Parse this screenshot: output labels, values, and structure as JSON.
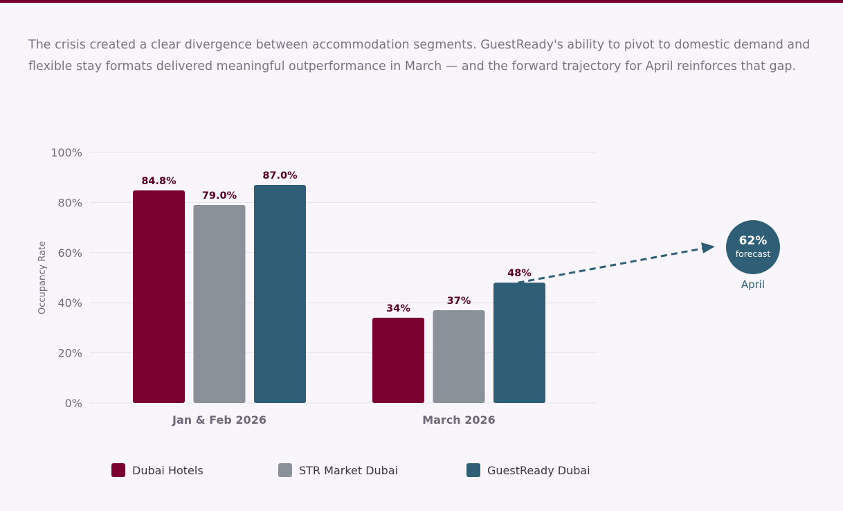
{
  "intro_text": "The crisis created a clear divergence between accommodation segments. GuestReady's ability to pivot to domestic demand and flexible stay formats delivered meaningful outperformance in March — and the forward trajectory for April reinforces that gap.",
  "colors": {
    "accent": "#7a0030",
    "dubai_hotels": "#7a0030",
    "str_market": "#8b9198",
    "guestready": "#2f5f76",
    "label": "#5a0025"
  },
  "chart_data": {
    "type": "bar",
    "categories": [
      "Jan & Feb 2026",
      "March 2026"
    ],
    "series": [
      {
        "name": "Dubai Hotels",
        "values": [
          84.8,
          34
        ],
        "labels": [
          "84.8%",
          "34%"
        ]
      },
      {
        "name": "STR Market Dubai",
        "values": [
          79.0,
          37
        ],
        "labels": [
          "79.0%",
          "37%"
        ]
      },
      {
        "name": "GuestReady Dubai",
        "values": [
          87.0,
          48
        ],
        "labels": [
          "87.0%",
          "48%"
        ]
      }
    ],
    "ylabel": "Occupancy Rate",
    "ylim": [
      0,
      100
    ],
    "yticks": [
      "0%",
      "20%",
      "40%",
      "60%",
      "80%",
      "100%"
    ],
    "grid": true,
    "legend": "bottom",
    "forecast": {
      "value": "62%",
      "sublabel": "forecast",
      "period": "April"
    }
  }
}
